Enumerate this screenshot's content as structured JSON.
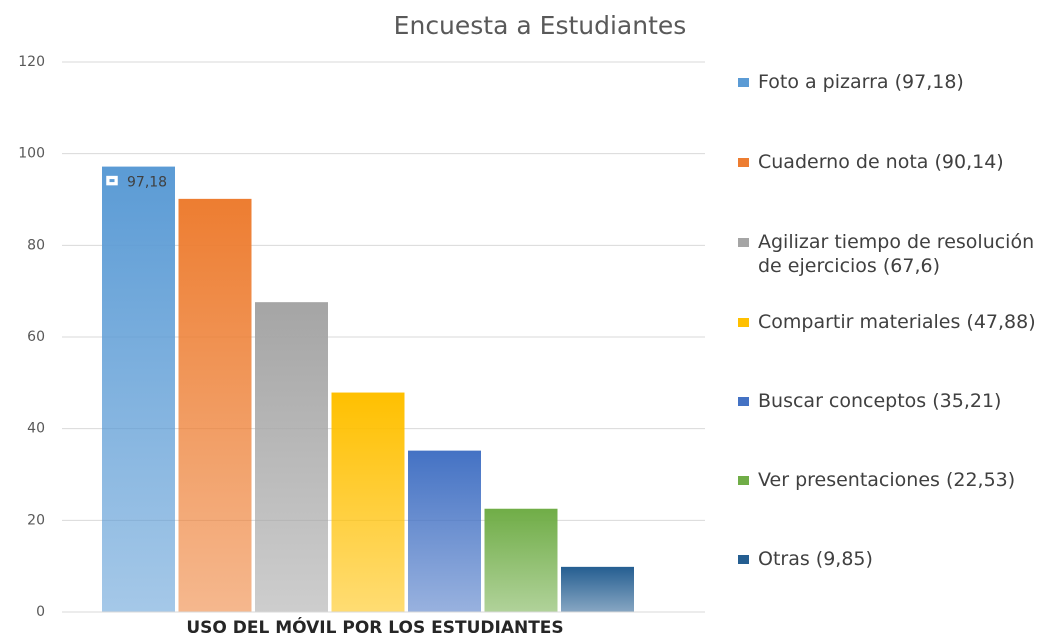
{
  "chart_data": {
    "type": "bar",
    "title": "Encuesta a Estudiantes",
    "categories": [
      "USO DEL MÓVIL POR LOS ESTUDIANTES"
    ],
    "series": [
      {
        "name": "Foto a pizarra (97,18)",
        "color": "#5b9bd5",
        "values": [
          97.18
        ],
        "value_labels": [
          "97,18"
        ]
      },
      {
        "name": "Cuaderno de nota (90,14)",
        "color": "#ed7d31",
        "values": [
          90.14
        ]
      },
      {
        "name": "Agilizar tiempo de resolución de ejercicios (67,6)",
        "color": "#a5a5a5",
        "values": [
          67.6
        ]
      },
      {
        "name": "Compartir materiales (47,88)",
        "color": "#ffc000",
        "values": [
          47.88
        ]
      },
      {
        "name": "Buscar conceptos (35,21)",
        "color": "#4472c4",
        "values": [
          35.21
        ]
      },
      {
        "name": "Ver presentaciones (22,53)",
        "color": "#70ad47",
        "values": [
          22.53
        ]
      },
      {
        "name": "Otras (9,85)",
        "color": "#255e91",
        "values": [
          9.85
        ]
      }
    ],
    "ylim": [
      0,
      120
    ],
    "yticks": [
      0,
      20,
      40,
      60,
      80,
      100,
      120
    ],
    "grid": true,
    "legend": "right"
  }
}
